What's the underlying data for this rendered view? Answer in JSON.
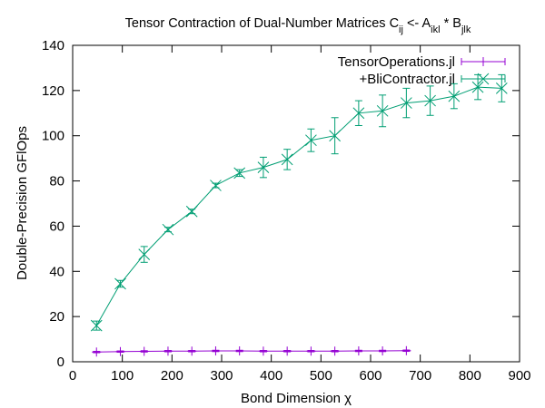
{
  "chart_data": {
    "type": "line",
    "title_parts": {
      "main": "Tensor Contraction of Dual-Number Matrices C",
      "c_sub": "ij",
      "mid": " <- A",
      "a_sub": "ikl",
      "star": " * B",
      "b_sub": "jlk"
    },
    "xlabel": "Bond Dimension χ",
    "ylabel": "Double-Precision GFlOps",
    "xlim": [
      0,
      900
    ],
    "ylim": [
      0,
      140
    ],
    "xticks": [
      0,
      100,
      200,
      300,
      400,
      500,
      600,
      700,
      800,
      900
    ],
    "yticks": [
      0,
      20,
      40,
      60,
      80,
      100,
      120,
      140
    ],
    "grid": false,
    "legend_position": "top-right",
    "series": [
      {
        "name": "TensorOperations.jl",
        "color": "#9400d3",
        "marker": "plus",
        "points": [
          {
            "x": 48,
            "y": 4.3,
            "err": 0.3
          },
          {
            "x": 96,
            "y": 4.5,
            "err": 0.3
          },
          {
            "x": 144,
            "y": 4.6,
            "err": 0.3
          },
          {
            "x": 192,
            "y": 4.7,
            "err": 0.3
          },
          {
            "x": 240,
            "y": 4.7,
            "err": 0.3
          },
          {
            "x": 288,
            "y": 4.8,
            "err": 0.3
          },
          {
            "x": 336,
            "y": 4.8,
            "err": 0.3
          },
          {
            "x": 384,
            "y": 4.7,
            "err": 0.3
          },
          {
            "x": 432,
            "y": 4.7,
            "err": 0.3
          },
          {
            "x": 480,
            "y": 4.7,
            "err": 0.3
          },
          {
            "x": 528,
            "y": 4.7,
            "err": 0.3
          },
          {
            "x": 576,
            "y": 4.8,
            "err": 0.3
          },
          {
            "x": 624,
            "y": 4.8,
            "err": 0.3
          },
          {
            "x": 672,
            "y": 4.9,
            "err": 0.3
          }
        ]
      },
      {
        "name": "+BliContractor.jl",
        "color": "#009e73",
        "marker": "cross",
        "points": [
          {
            "x": 48,
            "y": 16,
            "err": 2.0
          },
          {
            "x": 96,
            "y": 34.5,
            "err": 1.5
          },
          {
            "x": 144,
            "y": 47.5,
            "err": 3.5
          },
          {
            "x": 192,
            "y": 58.5,
            "err": 1.0
          },
          {
            "x": 240,
            "y": 66.5,
            "err": 1.0
          },
          {
            "x": 288,
            "y": 78,
            "err": 1.0
          },
          {
            "x": 336,
            "y": 83.5,
            "err": 1.5
          },
          {
            "x": 384,
            "y": 86,
            "err": 4.5
          },
          {
            "x": 432,
            "y": 89.5,
            "err": 4.5
          },
          {
            "x": 480,
            "y": 98,
            "err": 5.0
          },
          {
            "x": 528,
            "y": 100,
            "err": 8.0
          },
          {
            "x": 576,
            "y": 110,
            "err": 5.5
          },
          {
            "x": 624,
            "y": 111,
            "err": 7.0
          },
          {
            "x": 672,
            "y": 114.5,
            "err": 6.5
          },
          {
            "x": 720,
            "y": 115.5,
            "err": 6.5
          },
          {
            "x": 768,
            "y": 117.5,
            "err": 5.5
          },
          {
            "x": 816,
            "y": 121.5,
            "err": 5.5
          },
          {
            "x": 864,
            "y": 121,
            "err": 6.0
          }
        ]
      }
    ]
  }
}
